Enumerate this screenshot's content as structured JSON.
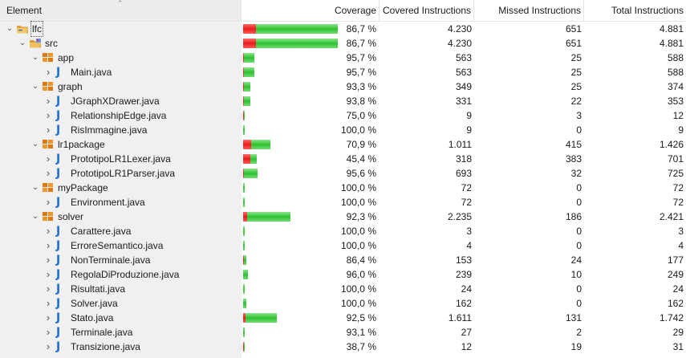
{
  "columns": {
    "element": "Element",
    "coverage": "Coverage",
    "covered": "Covered Instructions",
    "missed": "Missed Instructions",
    "total": "Total Instructions"
  },
  "rows": [
    {
      "name": "lfc",
      "type": "project",
      "level": 0,
      "expanded": true,
      "coverage": "86,7 %",
      "covered": "4.230",
      "missed": "651",
      "total": "4.881",
      "covered_n": 4230,
      "missed_n": 651
    },
    {
      "name": "src",
      "type": "folder",
      "level": 1,
      "expanded": true,
      "coverage": "86,7 %",
      "covered": "4.230",
      "missed": "651",
      "total": "4.881",
      "covered_n": 4230,
      "missed_n": 651
    },
    {
      "name": "app",
      "type": "package",
      "level": 2,
      "expanded": true,
      "coverage": "95,7 %",
      "covered": "563",
      "missed": "25",
      "total": "588",
      "covered_n": 563,
      "missed_n": 25
    },
    {
      "name": "Main.java",
      "type": "java",
      "level": 3,
      "expanded": false,
      "coverage": "95,7 %",
      "covered": "563",
      "missed": "25",
      "total": "588",
      "covered_n": 563,
      "missed_n": 25
    },
    {
      "name": "graph",
      "type": "package",
      "level": 2,
      "expanded": true,
      "coverage": "93,3 %",
      "covered": "349",
      "missed": "25",
      "total": "374",
      "covered_n": 349,
      "missed_n": 25
    },
    {
      "name": "JGraphXDrawer.java",
      "type": "java",
      "level": 3,
      "expanded": false,
      "coverage": "93,8 %",
      "covered": "331",
      "missed": "22",
      "total": "353",
      "covered_n": 331,
      "missed_n": 22
    },
    {
      "name": "RelationshipEdge.java",
      "type": "java",
      "level": 3,
      "expanded": false,
      "coverage": "75,0 %",
      "covered": "9",
      "missed": "3",
      "total": "12",
      "covered_n": 9,
      "missed_n": 3
    },
    {
      "name": "RisImmagine.java",
      "type": "java",
      "level": 3,
      "expanded": false,
      "coverage": "100,0 %",
      "covered": "9",
      "missed": "0",
      "total": "9",
      "covered_n": 9,
      "missed_n": 0
    },
    {
      "name": "lr1package",
      "type": "package",
      "level": 2,
      "expanded": true,
      "coverage": "70,9 %",
      "covered": "1.011",
      "missed": "415",
      "total": "1.426",
      "covered_n": 1011,
      "missed_n": 415
    },
    {
      "name": "PrototipoLR1Lexer.java",
      "type": "java",
      "level": 3,
      "expanded": false,
      "coverage": "45,4 %",
      "covered": "318",
      "missed": "383",
      "total": "701",
      "covered_n": 318,
      "missed_n": 383
    },
    {
      "name": "PrototipoLR1Parser.java",
      "type": "java",
      "level": 3,
      "expanded": false,
      "coverage": "95,6 %",
      "covered": "693",
      "missed": "32",
      "total": "725",
      "covered_n": 693,
      "missed_n": 32
    },
    {
      "name": "myPackage",
      "type": "package",
      "level": 2,
      "expanded": true,
      "coverage": "100,0 %",
      "covered": "72",
      "missed": "0",
      "total": "72",
      "covered_n": 72,
      "missed_n": 0
    },
    {
      "name": "Environment.java",
      "type": "java",
      "level": 3,
      "expanded": false,
      "coverage": "100,0 %",
      "covered": "72",
      "missed": "0",
      "total": "72",
      "covered_n": 72,
      "missed_n": 0
    },
    {
      "name": "solver",
      "type": "package",
      "level": 2,
      "expanded": true,
      "coverage": "92,3 %",
      "covered": "2.235",
      "missed": "186",
      "total": "2.421",
      "covered_n": 2235,
      "missed_n": 186
    },
    {
      "name": "Carattere.java",
      "type": "java",
      "level": 3,
      "expanded": false,
      "coverage": "100,0 %",
      "covered": "3",
      "missed": "0",
      "total": "3",
      "covered_n": 3,
      "missed_n": 0
    },
    {
      "name": "ErroreSemantico.java",
      "type": "java",
      "level": 3,
      "expanded": false,
      "coverage": "100,0 %",
      "covered": "4",
      "missed": "0",
      "total": "4",
      "covered_n": 4,
      "missed_n": 0
    },
    {
      "name": "NonTerminale.java",
      "type": "java",
      "level": 3,
      "expanded": false,
      "coverage": "86,4 %",
      "covered": "153",
      "missed": "24",
      "total": "177",
      "covered_n": 153,
      "missed_n": 24
    },
    {
      "name": "RegolaDiProduzione.java",
      "type": "java",
      "level": 3,
      "expanded": false,
      "coverage": "96,0 %",
      "covered": "239",
      "missed": "10",
      "total": "249",
      "covered_n": 239,
      "missed_n": 10
    },
    {
      "name": "Risultati.java",
      "type": "java",
      "level": 3,
      "expanded": false,
      "coverage": "100,0 %",
      "covered": "24",
      "missed": "0",
      "total": "24",
      "covered_n": 24,
      "missed_n": 0
    },
    {
      "name": "Solver.java",
      "type": "java",
      "level": 3,
      "expanded": false,
      "coverage": "100,0 %",
      "covered": "162",
      "missed": "0",
      "total": "162",
      "covered_n": 162,
      "missed_n": 0
    },
    {
      "name": "Stato.java",
      "type": "java",
      "level": 3,
      "expanded": false,
      "coverage": "92,5 %",
      "covered": "1.611",
      "missed": "131",
      "total": "1.742",
      "covered_n": 1611,
      "missed_n": 131
    },
    {
      "name": "Terminale.java",
      "type": "java",
      "level": 3,
      "expanded": false,
      "coverage": "93,1 %",
      "covered": "27",
      "missed": "2",
      "total": "29",
      "covered_n": 27,
      "missed_n": 2
    },
    {
      "name": "Transizione.java",
      "type": "java",
      "level": 3,
      "expanded": false,
      "coverage": "38,7 %",
      "covered": "12",
      "missed": "19",
      "total": "31",
      "covered_n": 12,
      "missed_n": 19
    }
  ],
  "colors": {
    "missed": "#e81c1c",
    "covered": "#2fc12f",
    "java_icon": "#1f6fd1",
    "package_icon": "#e07a10",
    "folder_icon": "#e3a43a"
  },
  "icons": {
    "project": "project-folder-icon",
    "folder": "source-folder-icon",
    "package": "package-icon",
    "java": "java-file-icon"
  }
}
